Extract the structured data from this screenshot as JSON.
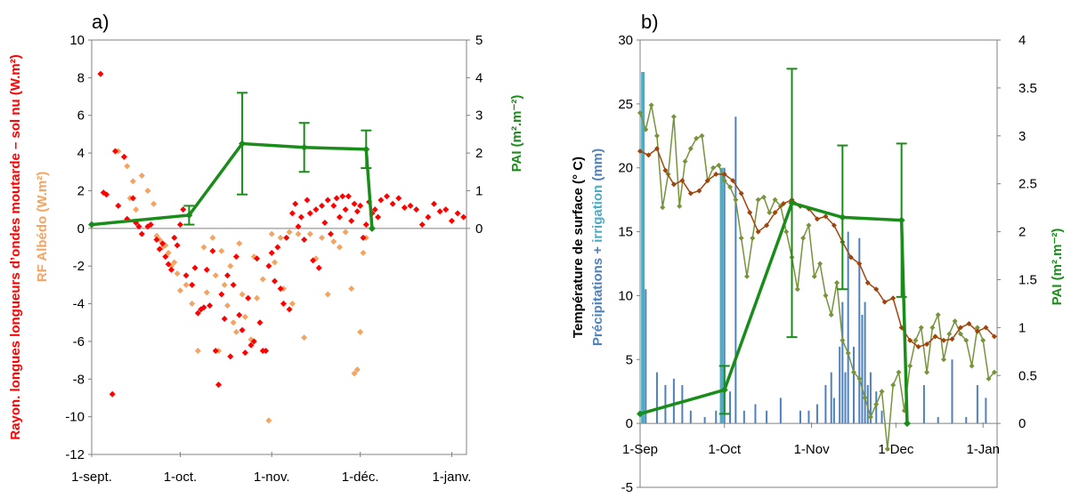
{
  "chart_data": [
    {
      "type": "scatter",
      "panel_label": "a)",
      "x_ticks": [
        "1-sept.",
        "1-oct.",
        "1-nov.",
        "1-déc.",
        "1-janv."
      ],
      "xlim": [
        "2013-09-01",
        "2014-01-06"
      ],
      "ylim": [
        -12,
        10
      ],
      "y_ticks": [
        10,
        8,
        6,
        4,
        2,
        0,
        -2,
        -4,
        -6,
        -8,
        -10,
        -12
      ],
      "y2lim": [
        -6,
        5
      ],
      "y2_ticks": [
        5,
        4,
        3,
        2,
        1,
        0
      ],
      "ylabel_red": "Rayon. longues longueurs d’ondes moutarde – sol nu (W.m²)",
      "ylabel_orange": "RF Albédo (W.m²)",
      "y2label": "PAI (m².m⁻²)",
      "colors": {
        "longwave": "#ff0000",
        "albedo": "#f4a460",
        "pai": "#1a8c1a",
        "axis": "#808080"
      },
      "grid": false,
      "series": [
        {
          "key": "longwave",
          "marker": "diamond",
          "x": [
            "2013-09-04",
            "2013-09-05",
            "2013-09-06",
            "2013-09-08",
            "2013-09-09",
            "2013-09-10",
            "2013-09-12",
            "2013-09-13",
            "2013-09-15",
            "2013-09-16",
            "2013-09-17",
            "2013-09-18",
            "2013-09-20",
            "2013-09-21",
            "2013-09-23",
            "2013-09-24",
            "2013-09-25",
            "2013-09-26",
            "2013-09-27",
            "2013-09-28",
            "2013-09-29",
            "2013-09-30",
            "2013-10-01",
            "2013-10-02",
            "2013-10-03",
            "2013-10-05",
            "2013-10-06",
            "2013-10-07",
            "2013-10-08",
            "2013-10-09",
            "2013-10-10",
            "2013-10-11",
            "2013-10-12",
            "2013-10-13",
            "2013-10-14",
            "2013-10-15",
            "2013-10-16",
            "2013-10-17",
            "2013-10-18",
            "2013-10-19",
            "2013-10-20",
            "2013-10-21",
            "2013-10-22",
            "2013-10-23",
            "2013-10-24",
            "2013-10-25",
            "2013-10-26",
            "2013-10-27",
            "2013-10-28",
            "2013-10-29",
            "2013-10-30",
            "2013-10-31",
            "2013-11-01",
            "2013-11-02",
            "2013-11-03",
            "2013-11-04",
            "2013-11-05",
            "2013-11-06",
            "2013-11-07",
            "2013-11-08",
            "2013-11-09",
            "2013-11-10",
            "2013-11-11",
            "2013-11-12",
            "2013-11-13",
            "2013-11-14",
            "2013-11-15",
            "2013-11-16",
            "2013-11-17",
            "2013-11-18",
            "2013-11-19",
            "2013-11-20",
            "2013-11-21",
            "2013-11-22",
            "2013-11-23",
            "2013-11-24",
            "2013-11-25",
            "2013-11-26",
            "2013-11-27",
            "2013-11-28",
            "2013-11-29",
            "2013-11-30",
            "2013-12-01",
            "2013-12-02",
            "2013-12-03",
            "2013-12-04",
            "2013-12-05",
            "2013-12-06",
            "2013-12-07",
            "2013-12-08",
            "2013-12-10",
            "2013-12-12",
            "2013-12-14",
            "2013-12-16",
            "2013-12-18",
            "2013-12-20",
            "2013-12-22",
            "2013-12-24",
            "2013-12-26",
            "2013-12-28",
            "2013-12-30",
            "2014-01-01",
            "2014-01-03",
            "2014-01-05"
          ],
          "y": [
            8.2,
            1.9,
            1.8,
            -8.8,
            4.1,
            1.2,
            3.8,
            0.5,
            1.6,
            0.3,
            0.1,
            -0.3,
            0.1,
            0.2,
            -0.6,
            -1.1,
            -0.8,
            -1.5,
            -1.9,
            -2.2,
            -0.5,
            -0.9,
            0.2,
            1.0,
            -2.5,
            -3.0,
            -2.1,
            -4.5,
            -4.3,
            -4.2,
            -2.2,
            -4.1,
            -1.2,
            -6.5,
            -8.3,
            -3.5,
            -4.8,
            -2.5,
            -6.8,
            -3.0,
            -1.5,
            -4.6,
            -5.4,
            -6.6,
            -3.7,
            -6.2,
            -6.0,
            -1.6,
            -5.0,
            -6.5,
            -6.5,
            -2.0,
            -1.3,
            -2.8,
            -1.0,
            -3.2,
            -4.0,
            -0.5,
            -4.3,
            0.8,
            1.3,
            0.1,
            0.6,
            -0.6,
            1.5,
            0.8,
            -1.7,
            1.0,
            -2.1,
            1.2,
            0.3,
            1.5,
            -0.3,
            1.2,
            1.6,
            0.6,
            1.7,
            1.0,
            1.7,
            0.4,
            1.3,
            0.9,
            1.2,
            -0.5,
            0.2,
            1.4,
            0.8,
            1.0,
            0.6,
            1.5,
            1.7,
            1.3,
            1.6,
            1.1,
            1.2,
            1.0,
            0.2,
            0.6,
            1.3,
            0.9,
            1.0,
            0.4,
            0.8,
            0.6
          ]
        },
        {
          "key": "albedo",
          "marker": "diamond",
          "x": [
            "2013-09-10",
            "2013-09-12",
            "2013-09-13",
            "2013-09-14",
            "2013-09-15",
            "2013-09-16",
            "2013-09-18",
            "2013-09-20",
            "2013-09-22",
            "2013-09-23",
            "2013-09-24",
            "2013-09-25",
            "2013-09-26",
            "2013-09-27",
            "2013-09-28",
            "2013-09-29",
            "2013-09-30",
            "2013-10-01",
            "2013-10-03",
            "2013-10-05",
            "2013-10-07",
            "2013-10-09",
            "2013-10-10",
            "2013-10-12",
            "2013-10-13",
            "2013-10-14",
            "2013-10-15",
            "2013-10-16",
            "2013-10-17",
            "2013-10-18",
            "2013-10-19",
            "2013-10-20",
            "2013-10-21",
            "2013-10-22",
            "2013-10-23",
            "2013-10-25",
            "2013-10-26",
            "2013-10-27",
            "2013-10-29",
            "2013-10-31",
            "2013-11-01",
            "2013-11-02",
            "2013-11-04",
            "2013-11-05",
            "2013-11-07",
            "2013-11-08",
            "2013-11-10",
            "2013-11-12",
            "2013-11-14",
            "2013-11-16",
            "2013-11-18",
            "2013-11-20",
            "2013-11-22",
            "2013-11-24",
            "2013-11-26",
            "2013-11-28",
            "2013-11-29",
            "2013-11-30",
            "2013-12-01",
            "2013-12-02",
            "2013-12-03"
          ],
          "y": [
            4.1,
            3.8,
            3.3,
            1.6,
            2.5,
            1.0,
            2.8,
            2.0,
            1.3,
            -0.4,
            -0.6,
            -1.0,
            -0.9,
            -1.3,
            -2.0,
            -1.8,
            -2.4,
            -3.3,
            -3.0,
            -4.0,
            -6.5,
            -1.0,
            -3.4,
            -0.5,
            -2.5,
            -6.5,
            -1.2,
            -3.0,
            -4.1,
            -2.0,
            -5.0,
            -5.5,
            -0.8,
            -3.5,
            -4.7,
            -5.9,
            -1.5,
            -3.7,
            -2.7,
            -10.2,
            -0.3,
            -1.8,
            -0.5,
            -3.2,
            -0.2,
            -4.0,
            -0.3,
            -5.8,
            -0.3,
            -1.6,
            -0.5,
            -3.5,
            -0.7,
            -1.0,
            -0.2,
            -3.2,
            -7.7,
            -7.5,
            -5.5,
            -1.3,
            -0.5
          ]
        },
        {
          "key": "pai",
          "axis": "right",
          "x": [
            "2013-09-01",
            "2013-10-04",
            "2013-10-22",
            "2013-11-12",
            "2013-12-03",
            "2013-12-05"
          ],
          "y": [
            0.1,
            0.35,
            2.25,
            2.15,
            2.1,
            0.0
          ],
          "err": [
            0,
            0.25,
            1.35,
            0.65,
            0.5,
            0
          ]
        }
      ]
    },
    {
      "type": "line",
      "panel_label": "b)",
      "x_ticks": [
        "1-Sep",
        "1-Oct",
        "1-Nov",
        "1-Dec",
        "1-Jan"
      ],
      "xlim": [
        "2013-09-01",
        "2014-01-06"
      ],
      "ylim": [
        -5,
        30
      ],
      "y_ticks": [
        30,
        25,
        20,
        15,
        10,
        5,
        0,
        -5
      ],
      "y2lim": [
        0,
        4
      ],
      "y2_ticks": [
        4,
        3.5,
        3,
        2.5,
        2,
        1.5,
        1,
        0.5,
        0
      ],
      "ylabel_black": "Température de surface (° C)",
      "ylabel_blue": "Précipitations + ",
      "ylabel_cyan": "irrigation",
      "ylabel_blue_end": " (mm)",
      "y2label": "PAI (m².m⁻²)",
      "colors": {
        "temp_brown": "#a0440c",
        "temp_olive": "#77933c",
        "precip": "#4f81bd",
        "irrigation": "#4bacc6",
        "pai": "#1a8c1a",
        "axis": "#808080"
      },
      "grid": false,
      "series": [
        {
          "key": "temp_brown",
          "marker": "diamond",
          "x": [
            "2013-09-01",
            "2013-09-04",
            "2013-09-07",
            "2013-09-10",
            "2013-09-13",
            "2013-09-16",
            "2013-09-19",
            "2013-09-22",
            "2013-09-25",
            "2013-09-28",
            "2013-10-01",
            "2013-10-04",
            "2013-10-07",
            "2013-10-10",
            "2013-10-13",
            "2013-10-16",
            "2013-10-19",
            "2013-10-22",
            "2013-10-25",
            "2013-10-28",
            "2013-10-31",
            "2013-11-03",
            "2013-11-06",
            "2013-11-09",
            "2013-11-12",
            "2013-11-15",
            "2013-11-18",
            "2013-11-21",
            "2013-11-24",
            "2013-11-27",
            "2013-11-30",
            "2013-12-03",
            "2013-12-06",
            "2013-12-09",
            "2013-12-12",
            "2013-12-15",
            "2013-12-18",
            "2013-12-21",
            "2013-12-24",
            "2013-12-27",
            "2013-12-30",
            "2014-01-02",
            "2014-01-05"
          ],
          "y": [
            21.3,
            21.0,
            21.5,
            19.8,
            18.7,
            19.0,
            18.0,
            18.2,
            19.0,
            19.5,
            19.5,
            19.0,
            18.0,
            16.5,
            15.0,
            15.5,
            16.5,
            17.2,
            17.5,
            17.0,
            16.8,
            16.0,
            16.2,
            15.5,
            14.2,
            13.0,
            12.5,
            11.0,
            10.5,
            9.5,
            9.8,
            7.5,
            6.5,
            6.0,
            6.2,
            6.8,
            6.5,
            6.6,
            7.5,
            7.8,
            7.2,
            7.5,
            6.8
          ]
        },
        {
          "key": "temp_olive",
          "marker": "diamond",
          "x": [
            "2013-09-01",
            "2013-09-03",
            "2013-09-05",
            "2013-09-07",
            "2013-09-09",
            "2013-09-11",
            "2013-09-13",
            "2013-09-15",
            "2013-09-17",
            "2013-09-19",
            "2013-09-21",
            "2013-09-23",
            "2013-09-25",
            "2013-09-27",
            "2013-09-29",
            "2013-10-01",
            "2013-10-03",
            "2013-10-05",
            "2013-10-07",
            "2013-10-09",
            "2013-10-11",
            "2013-10-13",
            "2013-10-15",
            "2013-10-17",
            "2013-10-19",
            "2013-10-21",
            "2013-10-23",
            "2013-10-25",
            "2013-10-27",
            "2013-10-29",
            "2013-10-31",
            "2013-11-02",
            "2013-11-04",
            "2013-11-06",
            "2013-11-08",
            "2013-11-10",
            "2013-11-12",
            "2013-11-14",
            "2013-11-16",
            "2013-11-18",
            "2013-11-20",
            "2013-11-22",
            "2013-11-24",
            "2013-11-26",
            "2013-11-28",
            "2013-11-30",
            "2013-12-02",
            "2013-12-04",
            "2013-12-06",
            "2013-12-08",
            "2013-12-10",
            "2013-12-12",
            "2013-12-14",
            "2013-12-16",
            "2013-12-18",
            "2013-12-20",
            "2013-12-22",
            "2013-12-24",
            "2013-12-26",
            "2013-12-28",
            "2013-12-30",
            "2014-01-01",
            "2014-01-03",
            "2014-01-05"
          ],
          "y": [
            24.3,
            23.0,
            24.9,
            22.5,
            16.9,
            19.5,
            24.0,
            17.0,
            20.5,
            21.5,
            22.3,
            22.5,
            19.0,
            20.0,
            20.2,
            19.0,
            18.5,
            17.5,
            14.5,
            11.5,
            14.5,
            17.5,
            17.7,
            16.5,
            17.5,
            17.0,
            15.0,
            13.0,
            10.5,
            14.5,
            15.5,
            11.5,
            12.5,
            10.0,
            8.5,
            11.0,
            6.5,
            5.5,
            4.0,
            3.5,
            2.0,
            0.5,
            1.5,
            2.5,
            -2.0,
            3.0,
            4.0,
            1.0,
            4.5,
            6.5,
            7.5,
            4.0,
            7.5,
            8.5,
            5.0,
            7.0,
            8.0,
            7.0,
            6.5,
            4.5,
            7.5,
            6.5,
            3.5,
            4.0
          ]
        },
        {
          "key": "precip",
          "type": "bar",
          "x": [
            "2013-09-03",
            "2013-09-07",
            "2013-09-10",
            "2013-09-13",
            "2013-09-16",
            "2013-09-19",
            "2013-09-24",
            "2013-09-28",
            "2013-10-01",
            "2013-10-03",
            "2013-10-05",
            "2013-10-08",
            "2013-10-12",
            "2013-10-16",
            "2013-10-21",
            "2013-10-28",
            "2013-10-31",
            "2013-11-03",
            "2013-11-06",
            "2013-11-08",
            "2013-11-09",
            "2013-11-11",
            "2013-11-12",
            "2013-11-13",
            "2013-11-14",
            "2013-11-16",
            "2013-11-18",
            "2013-11-19",
            "2013-11-20",
            "2013-11-21",
            "2013-11-22",
            "2013-11-24",
            "2013-11-26",
            "2013-12-11",
            "2013-12-16",
            "2013-12-21",
            "2013-12-26",
            "2013-12-30",
            "2014-01-02"
          ],
          "y": [
            10.5,
            4.0,
            3.0,
            3.5,
            3.0,
            1.0,
            0.5,
            1.0,
            20.0,
            2.5,
            24.0,
            1.0,
            1.5,
            1.0,
            2.0,
            1.0,
            1.0,
            1.5,
            3.0,
            4.0,
            2.0,
            6.0,
            9.5,
            4.0,
            15.0,
            6.0,
            14.5,
            8.5,
            9.5,
            3.0,
            4.0,
            2.5,
            1.0,
            3.0,
            0.5,
            5.0,
            0.5,
            3.0,
            2.0
          ]
        },
        {
          "key": "irrigation",
          "type": "bar",
          "x": [
            "2013-09-02",
            "2013-09-30"
          ],
          "y": [
            27.5,
            20.0
          ]
        },
        {
          "key": "pai",
          "axis": "right",
          "x": [
            "2013-09-01",
            "2013-10-01",
            "2013-10-25",
            "2013-11-12",
            "2013-12-03",
            "2013-12-05"
          ],
          "y": [
            0.1,
            0.35,
            2.3,
            2.15,
            2.12,
            0.0
          ],
          "err": [
            0,
            0.25,
            1.4,
            0.75,
            0.8,
            0
          ]
        }
      ]
    }
  ]
}
